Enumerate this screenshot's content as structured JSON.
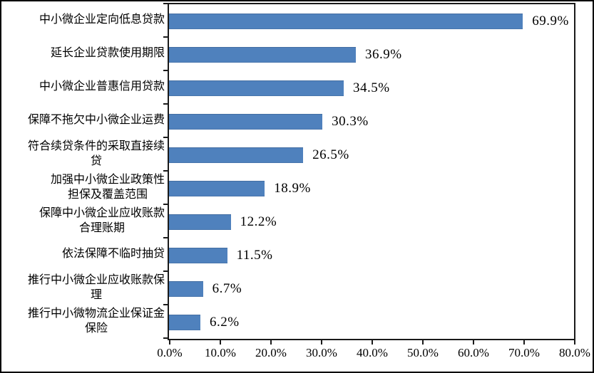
{
  "figure": {
    "background": "#ffffff",
    "border_color": "#000000"
  },
  "chart_data": {
    "type": "bar",
    "orientation": "horizontal",
    "title": "",
    "xlabel": "",
    "ylabel": "",
    "xlim": [
      0,
      80
    ],
    "x_tick_labels": [
      "0.0%",
      "10.0%",
      "20.0%",
      "30.0%",
      "40.0%",
      "50.0%",
      "60.0%",
      "70.0%",
      "80.0%"
    ],
    "grid": false,
    "legend": false,
    "bar_color": "#4F81BD",
    "text_color": "#000000",
    "axis_color": "#1a1a1a",
    "categories": [
      "中小微企业定向低息贷款",
      "延长企业贷款使用期限",
      "中小微企业普惠信用贷款",
      "保障不拖欠中小微企业运费",
      "符合续贷条件的采取直接续贷",
      "加强中小微企业政策性担保及覆盖范围",
      "保障中小微企业应收账款合理账期",
      "依法保障不临时抽贷",
      "推行中小微企业应收账款保理",
      "推行中小微物流企业保证金保险"
    ],
    "categories_display": [
      "中小微企业定向低息贷款",
      "延长企业贷款使用期限",
      "中小微企业普惠信用贷款",
      "保障不拖欠中小微企业运费",
      "符合续贷条件的采取直接续\n贷",
      "加强中小微企业政策性\n担保及覆盖范围",
      "保障中小微企业应收账款\n合理账期",
      "依法保障不临时抽贷",
      "推行中小微企业应收账款保\n理",
      "推行中小微物流企业保证金\n保险"
    ],
    "values": [
      69.9,
      36.9,
      34.5,
      30.3,
      26.5,
      18.9,
      12.2,
      11.5,
      6.7,
      6.2
    ],
    "data_labels": [
      "69.9%",
      "36.9%",
      "34.5%",
      "30.3%",
      "26.5%",
      "18.9%",
      "12.2%",
      "11.5%",
      "6.7%",
      "6.2%"
    ]
  }
}
